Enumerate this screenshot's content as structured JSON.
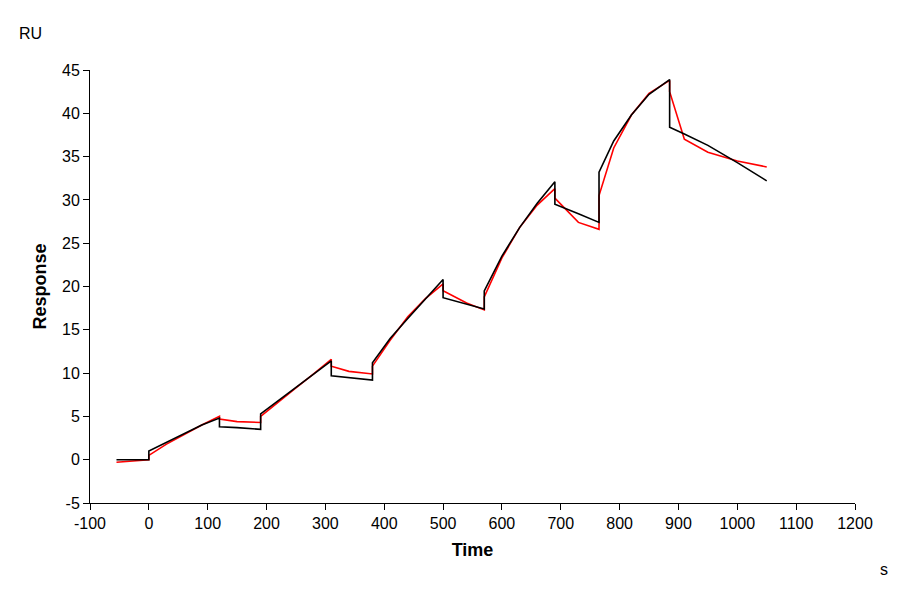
{
  "chart_data": {
    "type": "line",
    "x_label": "Time",
    "y_label": "Response",
    "annotations": [
      "RU",
      "s"
    ],
    "x": [
      -55,
      0,
      0,
      30,
      60,
      90,
      120,
      120,
      150,
      190,
      190,
      220,
      250,
      280,
      310,
      310,
      340,
      380,
      380,
      410,
      440,
      470,
      500,
      500,
      540,
      570,
      570,
      600,
      630,
      660,
      690,
      690,
      730,
      765,
      765,
      790,
      820,
      850,
      885,
      885,
      910,
      950,
      1000,
      1050
    ],
    "series": [
      {
        "color": "#ff0000",
        "values": [
          -0.3,
          0,
          0.5,
          1.8,
          2.9,
          4.0,
          5.0,
          4.7,
          4.4,
          4.3,
          5.0,
          6.7,
          8.3,
          9.9,
          11.6,
          10.8,
          10.2,
          9.9,
          10.8,
          13.8,
          16.5,
          18.6,
          20.3,
          19.5,
          18.1,
          17.3,
          18.8,
          23.3,
          26.8,
          29.4,
          31.3,
          30.2,
          27.4,
          26.6,
          30.5,
          36.0,
          39.8,
          42.3,
          43.8,
          42.5,
          37.0,
          35.5,
          34.5,
          33.8
        ]
      },
      {
        "color": "#000000",
        "values": [
          0,
          0,
          1.0,
          2.0,
          3.0,
          4.0,
          4.8,
          3.8,
          3.7,
          3.5,
          5.3,
          6.8,
          8.3,
          9.9,
          11.4,
          9.7,
          9.5,
          9.2,
          11.2,
          14.0,
          16.3,
          18.6,
          20.8,
          18.7,
          18.0,
          17.4,
          19.5,
          23.5,
          26.8,
          29.6,
          32.1,
          29.5,
          28.4,
          27.4,
          33.2,
          36.8,
          39.8,
          42.2,
          43.9,
          38.4,
          37.6,
          36.3,
          34.3,
          32.2
        ]
      }
    ],
    "xlim": [
      -100,
      1200
    ],
    "xticks": [
      -100,
      0,
      100,
      200,
      300,
      400,
      500,
      600,
      700,
      800,
      900,
      1000,
      1100,
      1200
    ],
    "ylim": [
      -5,
      45
    ],
    "yticks": [
      -5,
      0,
      5,
      10,
      15,
      20,
      25,
      30,
      35,
      40,
      45
    ],
    "grid": false
  }
}
